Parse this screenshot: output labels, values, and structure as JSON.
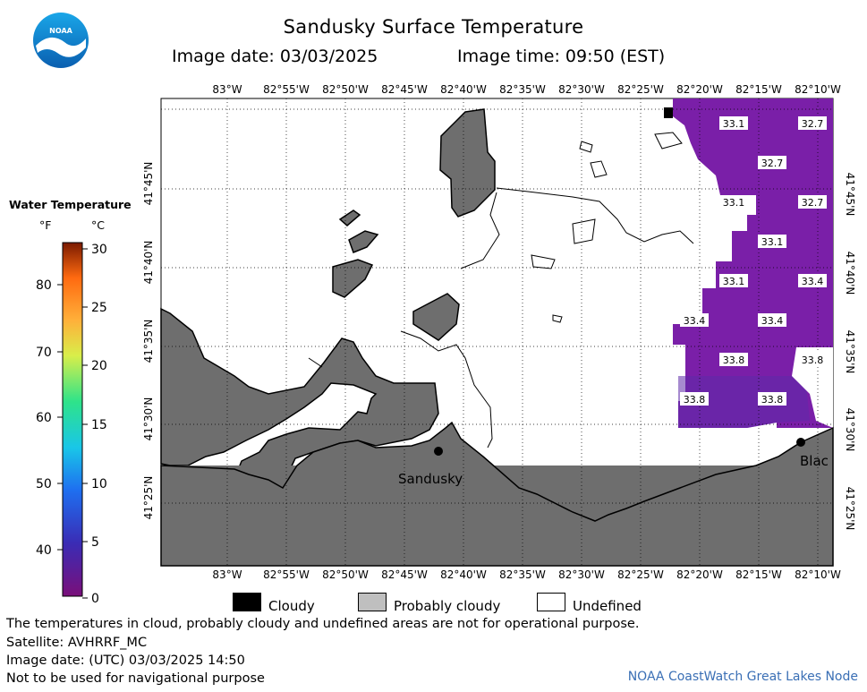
{
  "header": {
    "title": "Sandusky Surface Temperature",
    "image_date": "Image date: 03/03/2025",
    "image_time": "Image time: 09:50 (EST)"
  },
  "logo": {
    "text": "NOAA"
  },
  "axes": {
    "top_lon": [
      "83°W",
      "82°55'W",
      "82°50'W",
      "82°45'W",
      "82°40'W",
      "82°35'W",
      "82°30'W",
      "82°25'W",
      "82°20'W",
      "82°15'W",
      "82°10'W"
    ],
    "bottom_lon": [
      "83°W",
      "82°55'W",
      "82°50'W",
      "82°45'W",
      "82°40'W",
      "82°35'W",
      "82°30'W",
      "82°25'W",
      "82°20'W",
      "82°15'W",
      "82°10'W"
    ],
    "left_lat": [
      "41°45'N",
      "41°40'N",
      "41°35'N",
      "41°30'N",
      "41°25'N"
    ],
    "right_lat": [
      "41°45'N",
      "41°40'N",
      "41°35'N",
      "41°30'N",
      "41°25'N"
    ]
  },
  "legend": {
    "title": "Water Temperature",
    "unit_f": "°F",
    "unit_c": "°C",
    "f_ticks": [
      "80",
      "70",
      "60",
      "50",
      "40"
    ],
    "c_ticks": [
      "30",
      "25",
      "20",
      "15",
      "10",
      "5",
      "0"
    ],
    "range_c": [
      0,
      30
    ]
  },
  "map_labels": {
    "cities": [
      "Sandusky",
      "Blac"
    ],
    "temperatures_c": [
      {
        "value": "33.1"
      },
      {
        "value": "32.7"
      },
      {
        "value": "32.7"
      },
      {
        "value": "33.1"
      },
      {
        "value": "32.7"
      },
      {
        "value": "33.1"
      },
      {
        "value": "33.1"
      },
      {
        "value": "33.4"
      },
      {
        "value": "33.4"
      },
      {
        "value": "33.4"
      },
      {
        "value": "33.8"
      },
      {
        "value": "33.8"
      },
      {
        "value": "33.8"
      },
      {
        "value": "33.8"
      }
    ]
  },
  "key": {
    "cloudy": "Cloudy",
    "probably_cloudy": "Probably cloudy",
    "undefined": "Undefined"
  },
  "footer": {
    "line1": "The temperatures in cloud, probably cloudy and undefined areas are not for operational purpose.",
    "line2": "Satellite: AVHRRF_MC",
    "line3": "Image date: (UTC) 03/03/2025  14:50",
    "line4": "Not to be used for navigational purpose",
    "credit": "NOAA CoastWatch Great Lakes Node"
  },
  "colors": {
    "land": "#6e6e6e",
    "water_undefined": "#ffffff",
    "cloudy": "#000000",
    "probably_cloudy": "#bfbfbf",
    "cold_water": "#7a1fa8",
    "credit": "#3a6fb5"
  }
}
